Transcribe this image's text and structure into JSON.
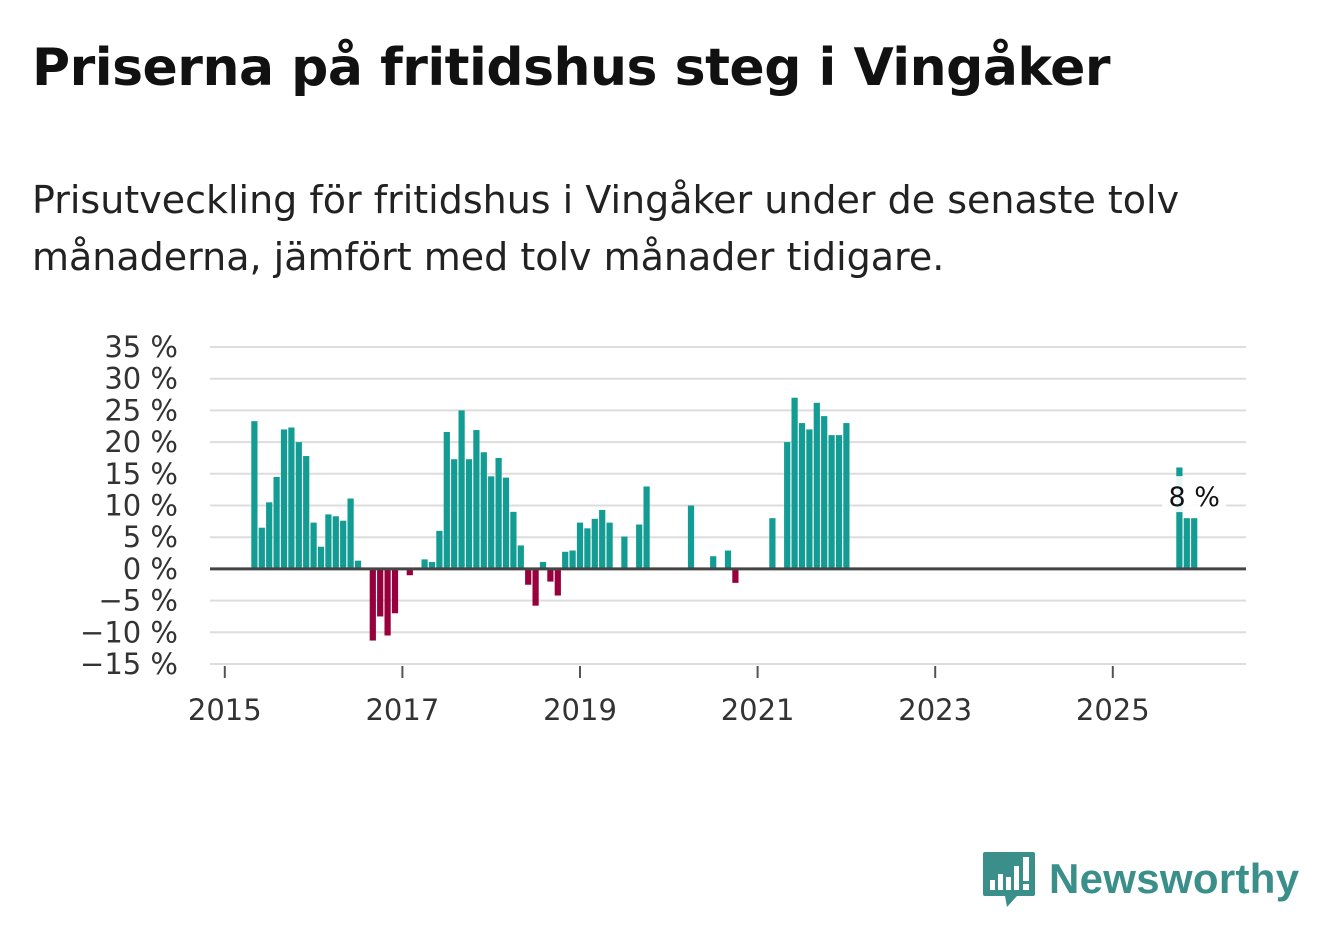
{
  "header": {
    "title": "Priserna på fritidshus steg i Vingåker",
    "subtitle": "Prisutveckling för fritidshus i Vingåker under de senaste tolv månaderna, jämfört med tolv månader tidigare."
  },
  "brand": {
    "name": "Newsworthy"
  },
  "colors": {
    "positive": "#129c94",
    "negative": "#97003c",
    "grid": "#dddddd",
    "zero": "#444444"
  },
  "chart_data": {
    "type": "bar",
    "title": "Priserna på fritidshus steg i Vingåker",
    "xlabel": "",
    "ylabel": "",
    "ylim": [
      -15,
      35
    ],
    "yticks": [
      35,
      30,
      25,
      20,
      15,
      10,
      5,
      0,
      -5,
      -10,
      -15
    ],
    "ytick_labels": [
      "35 %",
      "30 %",
      "25 %",
      "20 %",
      "15 %",
      "10 %",
      "5 %",
      "0 %",
      "−5 %",
      "−10 %",
      "−15 %"
    ],
    "xrange": [
      "2014-11",
      "2026-07"
    ],
    "xticks": [
      "2015",
      "2017",
      "2019",
      "2021",
      "2023",
      "2025"
    ],
    "annotation": {
      "label": "8 %",
      "date": "2025-12",
      "value": 8
    },
    "series": [
      {
        "name": "Prisutveckling",
        "points": [
          {
            "date": "2015-05",
            "value": 23.3
          },
          {
            "date": "2015-06",
            "value": 6.5
          },
          {
            "date": "2015-07",
            "value": 10.5
          },
          {
            "date": "2015-08",
            "value": 14.5
          },
          {
            "date": "2015-09",
            "value": 22.0
          },
          {
            "date": "2015-10",
            "value": 22.3
          },
          {
            "date": "2015-11",
            "value": 20.0
          },
          {
            "date": "2015-12",
            "value": 17.8
          },
          {
            "date": "2016-01",
            "value": 7.3
          },
          {
            "date": "2016-02",
            "value": 3.5
          },
          {
            "date": "2016-03",
            "value": 8.6
          },
          {
            "date": "2016-04",
            "value": 8.3
          },
          {
            "date": "2016-05",
            "value": 7.6
          },
          {
            "date": "2016-06",
            "value": 11.1
          },
          {
            "date": "2016-07",
            "value": 1.3
          },
          {
            "date": "2016-09",
            "value": -11.3
          },
          {
            "date": "2016-10",
            "value": -7.5
          },
          {
            "date": "2016-11",
            "value": -10.5
          },
          {
            "date": "2016-12",
            "value": -7.0
          },
          {
            "date": "2017-02",
            "value": -1.0
          },
          {
            "date": "2017-04",
            "value": 1.5
          },
          {
            "date": "2017-05",
            "value": 1.1
          },
          {
            "date": "2017-06",
            "value": 6.0
          },
          {
            "date": "2017-07",
            "value": 21.6
          },
          {
            "date": "2017-08",
            "value": 17.3
          },
          {
            "date": "2017-09",
            "value": 25.0
          },
          {
            "date": "2017-10",
            "value": 17.3
          },
          {
            "date": "2017-11",
            "value": 21.9
          },
          {
            "date": "2017-12",
            "value": 18.4
          },
          {
            "date": "2018-01",
            "value": 14.6
          },
          {
            "date": "2018-02",
            "value": 17.5
          },
          {
            "date": "2018-03",
            "value": 14.4
          },
          {
            "date": "2018-04",
            "value": 9.0
          },
          {
            "date": "2018-05",
            "value": 3.7
          },
          {
            "date": "2018-06",
            "value": -2.5
          },
          {
            "date": "2018-07",
            "value": -5.8
          },
          {
            "date": "2018-08",
            "value": 1.1
          },
          {
            "date": "2018-09",
            "value": -2.0
          },
          {
            "date": "2018-10",
            "value": -4.2
          },
          {
            "date": "2018-11",
            "value": 2.7
          },
          {
            "date": "2018-12",
            "value": 2.9
          },
          {
            "date": "2019-01",
            "value": 7.3
          },
          {
            "date": "2019-02",
            "value": 6.4
          },
          {
            "date": "2019-03",
            "value": 7.9
          },
          {
            "date": "2019-04",
            "value": 9.3
          },
          {
            "date": "2019-05",
            "value": 7.3
          },
          {
            "date": "2019-07",
            "value": 5.1
          },
          {
            "date": "2019-09",
            "value": 7.0
          },
          {
            "date": "2019-10",
            "value": 13.0
          },
          {
            "date": "2020-04",
            "value": 10.0
          },
          {
            "date": "2020-07",
            "value": 2.0
          },
          {
            "date": "2020-09",
            "value": 2.9
          },
          {
            "date": "2020-10",
            "value": -2.2
          },
          {
            "date": "2021-03",
            "value": 8.0
          },
          {
            "date": "2021-05",
            "value": 20.0
          },
          {
            "date": "2021-06",
            "value": 27.0
          },
          {
            "date": "2021-07",
            "value": 23.0
          },
          {
            "date": "2021-08",
            "value": 22.0
          },
          {
            "date": "2021-09",
            "value": 26.2
          },
          {
            "date": "2021-10",
            "value": 24.1
          },
          {
            "date": "2021-11",
            "value": 21.1
          },
          {
            "date": "2021-12",
            "value": 21.1
          },
          {
            "date": "2022-01",
            "value": 23.0
          },
          {
            "date": "2025-10",
            "value": 16.0
          },
          {
            "date": "2025-11",
            "value": 8.0
          },
          {
            "date": "2025-12",
            "value": 8.0
          }
        ]
      }
    ]
  }
}
